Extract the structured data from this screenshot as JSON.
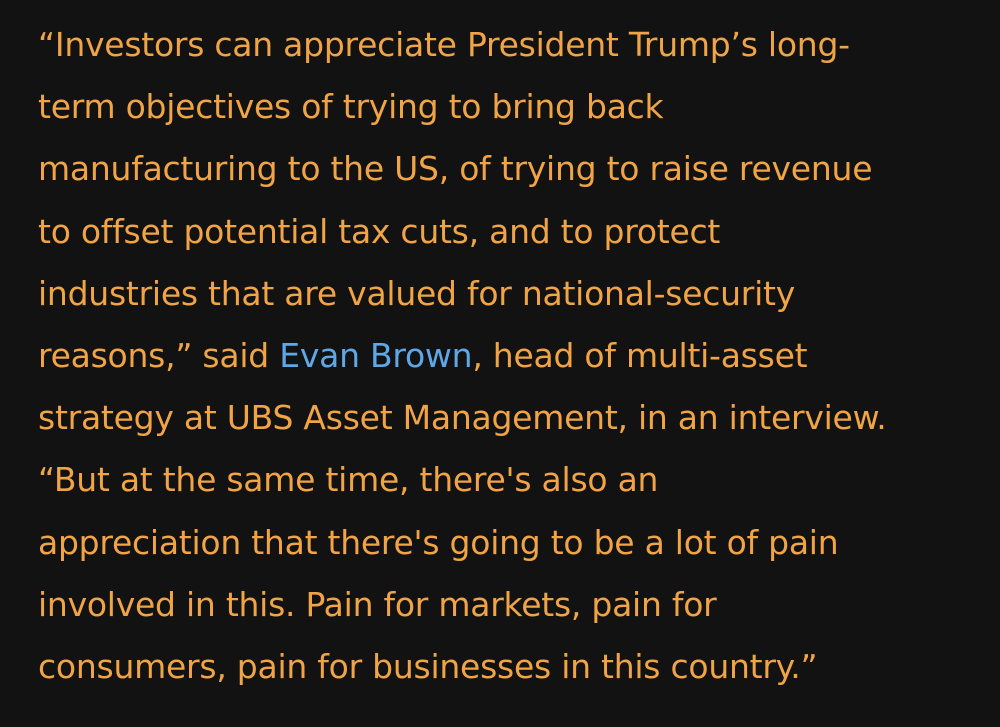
{
  "article": {
    "paragraph": {
      "lines": [
        "“Investors can appreciate President Trump’s long-",
        "term objectives of trying to bring back",
        "manufacturing to the US, of trying to raise revenue",
        "to offset potential tax cuts, and to protect",
        "industries that are valued for national-security"
      ],
      "line6_before_link": "reasons,” said ",
      "person_link": "Evan Brown",
      "line6_after_link": ", head of multi-asset",
      "lines_after": [
        "strategy at UBS Asset Management, in an interview.",
        "“But at the same time, there's also an",
        "appreciation that there's going to be a lot of pain",
        "involved in this. Pain for markets, pain for",
        "consumers, pain for businesses in this country.”"
      ]
    }
  },
  "colors": {
    "background": "#121212",
    "quote_text": "#f0a446",
    "link": "#5fa8e8"
  }
}
